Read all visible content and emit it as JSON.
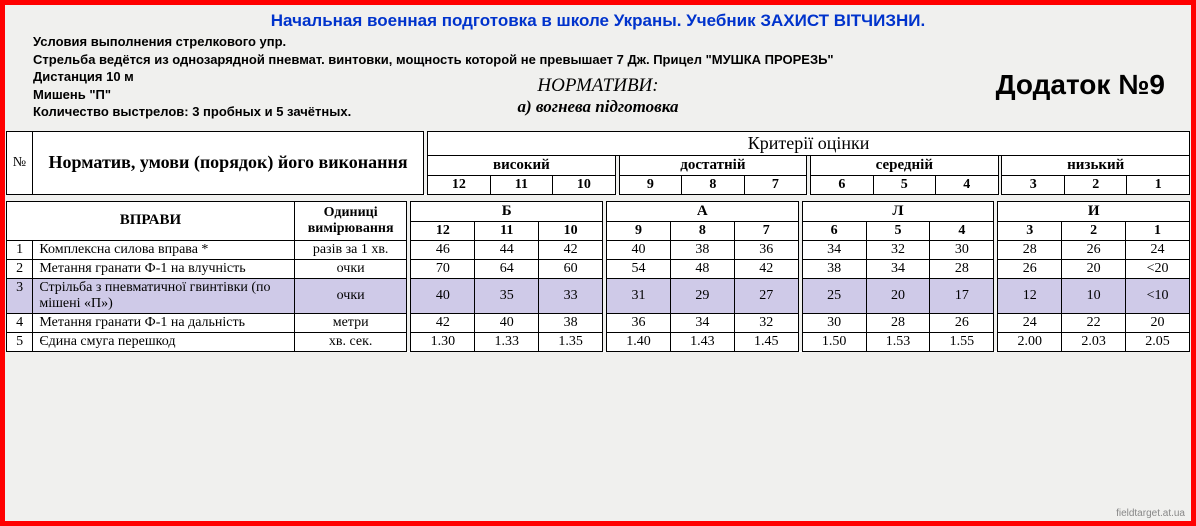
{
  "title": "Начальная военная подготовка в школе Украны. Учебник ЗАХИСТ ВІТЧИЗНИ.",
  "conditions": [
    "Условия выполнения стрелкового упр.",
    "Стрельба ведётся из однозарядной пневмат. винтовки, мощность которой не превышает 7 Дж. Прицел \"МУШКА ПРОРЕЗЬ\"",
    "Дистанция 10 м",
    "Мишень \"П\"",
    "Количество выстрелов:   3 пробных и 5 зачётных."
  ],
  "normativi_title": "НОРМАТИВИ:",
  "normativi_sub": "а) вогнева підготовка",
  "dodatok": "Додаток №9",
  "table1": {
    "num_label": "№",
    "norm_label": "Норматив, умови (порядок) його виконання",
    "crit_label": "Критерії оцінки",
    "levels": [
      "високий",
      "достатній",
      "середній",
      "низький"
    ],
    "scores": [
      "12",
      "11",
      "10",
      "9",
      "8",
      "7",
      "6",
      "5",
      "4",
      "3",
      "2",
      "1"
    ]
  },
  "table2": {
    "vpravi": "ВПРАВИ",
    "units": "Одиниці вимірювання",
    "bali": [
      "Б",
      "А",
      "Л",
      "И"
    ],
    "scores": [
      "12",
      "11",
      "10",
      "9",
      "8",
      "7",
      "6",
      "5",
      "4",
      "3",
      "2",
      "1"
    ],
    "rows": [
      {
        "n": "1",
        "name": "Комплексна силова вправа *",
        "unit": "разів за 1 хв.",
        "v": [
          "46",
          "44",
          "42",
          "40",
          "38",
          "36",
          "34",
          "32",
          "30",
          "28",
          "26",
          "24"
        ],
        "hl": false
      },
      {
        "n": "2",
        "name": "Метання гранати  Ф-1 на влучність",
        "unit": "очки",
        "v": [
          "70",
          "64",
          "60",
          "54",
          "48",
          "42",
          "38",
          "34",
          "28",
          "26",
          "20",
          "<20"
        ],
        "hl": false
      },
      {
        "n": "3",
        "name": "Стрільба з пневматичної гвинтівки (по мішені «П»)",
        "unit": "очки",
        "v": [
          "40",
          "35",
          "33",
          "31",
          "29",
          "27",
          "25",
          "20",
          "17",
          "12",
          "10",
          "<10"
        ],
        "hl": true
      },
      {
        "n": "4",
        "name": "Метання гранати Ф-1 на дальність",
        "unit": "метри",
        "v": [
          "42",
          "40",
          "38",
          "36",
          "34",
          "32",
          "30",
          "28",
          "26",
          "24",
          "22",
          "20"
        ],
        "hl": false
      },
      {
        "n": "5",
        "name": "Єдина смуга перешкод",
        "unit": "хв. сек.",
        "v": [
          "1.30",
          "1.33",
          "1.35",
          "1.40",
          "1.43",
          "1.45",
          "1.50",
          "1.53",
          "1.55",
          "2.00",
          "2.03",
          "2.05"
        ],
        "hl": false
      }
    ]
  },
  "watermark": "fieldtarget.at.ua"
}
